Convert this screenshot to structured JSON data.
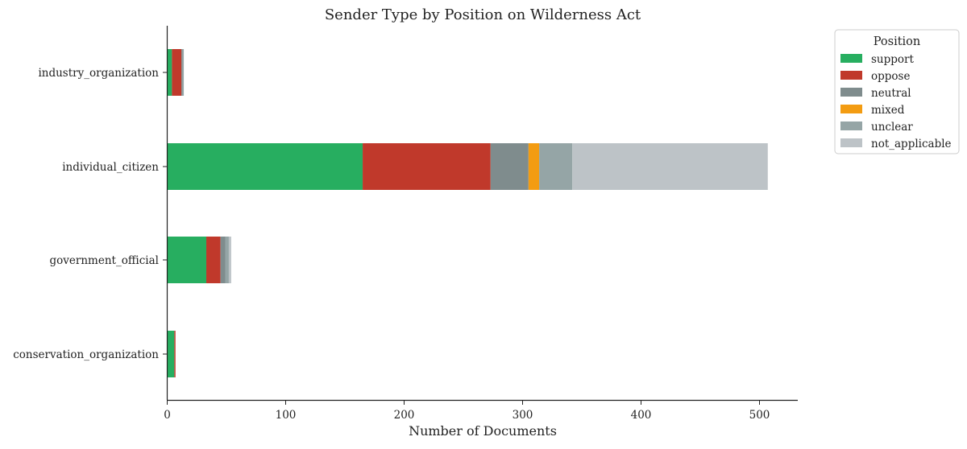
{
  "chart_data": {
    "type": "bar",
    "orientation": "horizontal",
    "stacked": true,
    "title": "Sender Type by Position on Wilderness Act",
    "xlabel": "Number of Documents",
    "ylabel": "",
    "xlim": [
      0,
      532
    ],
    "xticks": [
      0,
      100,
      200,
      300,
      400,
      500
    ],
    "grid": false,
    "legend_placement": "outside-top-right",
    "legend_title": "Position",
    "categories": [
      "industry_organization",
      "individual_citizen",
      "government_official",
      "conservation_organization"
    ],
    "series": [
      {
        "name": "support",
        "color": "#27ae60",
        "values": [
          4,
          165,
          33,
          6
        ]
      },
      {
        "name": "oppose",
        "color": "#c0392b",
        "values": [
          8,
          108,
          12,
          1
        ]
      },
      {
        "name": "neutral",
        "color": "#7f8c8d",
        "values": [
          1,
          32,
          4,
          0
        ]
      },
      {
        "name": "mixed",
        "color": "#f39c12",
        "values": [
          0,
          9,
          0,
          0
        ]
      },
      {
        "name": "unclear",
        "color": "#95a5a6",
        "values": [
          1,
          28,
          3,
          0
        ]
      },
      {
        "name": "not_applicable",
        "color": "#bdc3c7",
        "values": [
          0,
          165,
          2,
          0
        ]
      }
    ]
  }
}
